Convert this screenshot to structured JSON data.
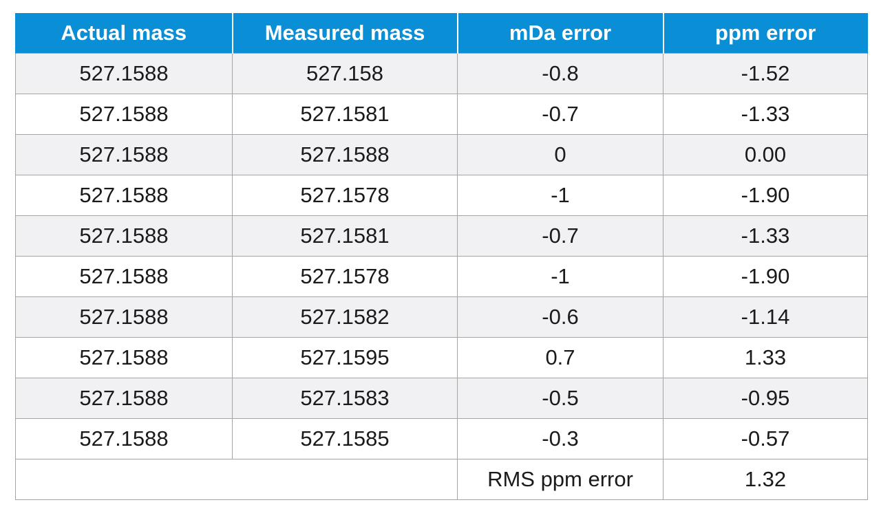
{
  "table": {
    "headers": [
      "Actual mass",
      "Measured mass",
      "mDa error",
      "ppm error"
    ],
    "rows": [
      [
        "527.1588",
        "527.158",
        "-0.8",
        "-1.52"
      ],
      [
        "527.1588",
        "527.1581",
        "-0.7",
        "-1.33"
      ],
      [
        "527.1588",
        "527.1588",
        "0",
        "0.00"
      ],
      [
        "527.1588",
        "527.1578",
        "-1",
        "-1.90"
      ],
      [
        "527.1588",
        "527.1581",
        "-0.7",
        "-1.33"
      ],
      [
        "527.1588",
        "527.1578",
        "-1",
        "-1.90"
      ],
      [
        "527.1588",
        "527.1582",
        "-0.6",
        "-1.14"
      ],
      [
        "527.1588",
        "527.1595",
        "0.7",
        "1.33"
      ],
      [
        "527.1588",
        "527.1583",
        "-0.5",
        "-0.95"
      ],
      [
        "527.1588",
        "527.1585",
        "-0.3",
        "-0.57"
      ]
    ],
    "summary": {
      "label": "RMS ppm error",
      "value": "1.32"
    }
  },
  "colors": {
    "header_bg": "#0a8fd6",
    "header_text": "#ffffff",
    "stripe_bg": "#f1f1f3",
    "border": "#a4a4a4"
  }
}
